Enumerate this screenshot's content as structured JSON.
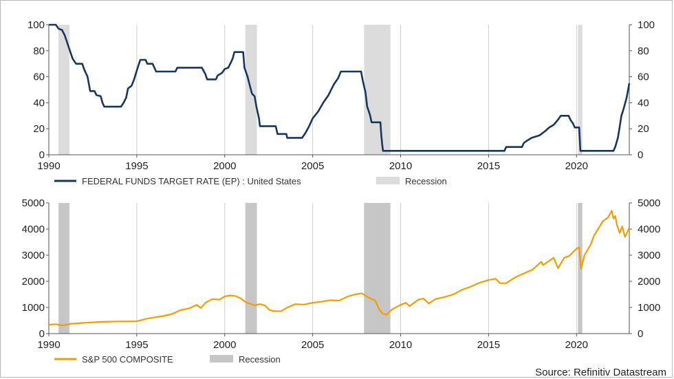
{
  "source": "Source: Refinitiv Datastream",
  "colors": {
    "fed": "#17365d",
    "spx": "#f59c00",
    "rec_top": "#dcdcdc",
    "rec_bottom": "#c6c6c6",
    "grid": "#cfcfcf",
    "axis": "#555555"
  },
  "recessions": [
    [
      1990.55,
      1991.17
    ],
    [
      2001.17,
      2001.83
    ],
    [
      2007.92,
      2009.42
    ],
    [
      2020.08,
      2020.33
    ]
  ],
  "chart_data": [
    {
      "type": "line",
      "title": "",
      "series": [
        {
          "name": "FEDERAL FUNDS TARGET RATE (EP) : United States",
          "legend_label": "FEDERAL FUNDS TARGET RATE (EP) : United States"
        }
      ],
      "recession_label": "Recession",
      "xlim": [
        1990,
        2023
      ],
      "ylim": [
        0,
        100
      ],
      "x_ticks": [
        "1990",
        "1995",
        "2000",
        "2005",
        "2010",
        "2015",
        "2020"
      ],
      "y_ticks": [
        "0",
        "20",
        "40",
        "60",
        "80",
        "100"
      ],
      "points": [
        [
          1990.0,
          100
        ],
        [
          1990.4,
          100
        ],
        [
          1990.55,
          97
        ],
        [
          1990.75,
          96
        ],
        [
          1990.9,
          92
        ],
        [
          1991.05,
          86
        ],
        [
          1991.2,
          80
        ],
        [
          1991.35,
          74
        ],
        [
          1991.55,
          70
        ],
        [
          1991.9,
          70
        ],
        [
          1992.0,
          66
        ],
        [
          1992.2,
          60
        ],
        [
          1992.35,
          49
        ],
        [
          1992.6,
          49
        ],
        [
          1992.7,
          46
        ],
        [
          1992.95,
          45
        ],
        [
          1993.05,
          40
        ],
        [
          1993.15,
          37
        ],
        [
          1994.1,
          37
        ],
        [
          1994.25,
          40
        ],
        [
          1994.4,
          44
        ],
        [
          1994.5,
          51
        ],
        [
          1994.7,
          53
        ],
        [
          1994.85,
          58
        ],
        [
          1995.05,
          67
        ],
        [
          1995.2,
          73
        ],
        [
          1995.5,
          73
        ],
        [
          1995.6,
          70
        ],
        [
          1995.9,
          70
        ],
        [
          1996.1,
          64
        ],
        [
          1997.2,
          64
        ],
        [
          1997.3,
          67
        ],
        [
          1998.7,
          67
        ],
        [
          1998.9,
          62
        ],
        [
          1999.0,
          58
        ],
        [
          1999.5,
          58
        ],
        [
          1999.6,
          61
        ],
        [
          1999.85,
          63
        ],
        [
          2000.0,
          66
        ],
        [
          2000.2,
          67
        ],
        [
          2000.35,
          71
        ],
        [
          2000.45,
          74
        ],
        [
          2000.55,
          79
        ],
        [
          2001.05,
          79
        ],
        [
          2001.12,
          67
        ],
        [
          2001.3,
          60
        ],
        [
          2001.45,
          52
        ],
        [
          2001.55,
          47
        ],
        [
          2001.7,
          45
        ],
        [
          2001.8,
          37
        ],
        [
          2001.95,
          28
        ],
        [
          2002.0,
          22
        ],
        [
          2002.9,
          22
        ],
        [
          2003.0,
          16
        ],
        [
          2003.5,
          16
        ],
        [
          2003.55,
          13
        ],
        [
          2004.4,
          13
        ],
        [
          2004.6,
          17
        ],
        [
          2004.8,
          22
        ],
        [
          2005.0,
          28
        ],
        [
          2005.3,
          33
        ],
        [
          2005.6,
          40
        ],
        [
          2005.9,
          46
        ],
        [
          2006.2,
          54
        ],
        [
          2006.45,
          59
        ],
        [
          2006.6,
          64
        ],
        [
          2007.75,
          64
        ],
        [
          2007.85,
          57
        ],
        [
          2008.0,
          48
        ],
        [
          2008.1,
          37
        ],
        [
          2008.25,
          31
        ],
        [
          2008.35,
          25
        ],
        [
          2008.85,
          25
        ],
        [
          2008.9,
          15
        ],
        [
          2008.95,
          8
        ],
        [
          2009.0,
          3
        ],
        [
          2015.9,
          3
        ],
        [
          2016.0,
          6
        ],
        [
          2016.9,
          6
        ],
        [
          2017.0,
          9
        ],
        [
          2017.2,
          11
        ],
        [
          2017.45,
          13
        ],
        [
          2017.9,
          15
        ],
        [
          2018.2,
          18
        ],
        [
          2018.45,
          21
        ],
        [
          2018.7,
          23
        ],
        [
          2018.95,
          27
        ],
        [
          2019.1,
          30
        ],
        [
          2019.55,
          30
        ],
        [
          2019.65,
          27
        ],
        [
          2019.8,
          24
        ],
        [
          2019.9,
          21
        ],
        [
          2020.15,
          21
        ],
        [
          2020.22,
          3
        ],
        [
          2022.1,
          3
        ],
        [
          2022.2,
          6
        ],
        [
          2022.35,
          13
        ],
        [
          2022.45,
          21
        ],
        [
          2022.55,
          30
        ],
        [
          2022.65,
          34
        ],
        [
          2022.75,
          39
        ],
        [
          2022.85,
          44
        ],
        [
          2023.0,
          55
        ]
      ]
    },
    {
      "type": "line",
      "title": "",
      "series": [
        {
          "name": "S&P 500 COMPOSITE",
          "legend_label": "S&P 500 COMPOSITE"
        }
      ],
      "recession_label": "Recession",
      "xlim": [
        1990,
        2023
      ],
      "ylim": [
        0,
        5000
      ],
      "x_ticks": [
        "1990",
        "1995",
        "2000",
        "2005",
        "2010",
        "2015",
        "2020"
      ],
      "y_ticks": [
        "0",
        "1000",
        "2000",
        "3000",
        "4000",
        "5000"
      ],
      "points": [
        [
          1990.0,
          340
        ],
        [
          1990.4,
          360
        ],
        [
          1990.8,
          310
        ],
        [
          1991.2,
          370
        ],
        [
          1992.0,
          410
        ],
        [
          1993.0,
          450
        ],
        [
          1994.0,
          465
        ],
        [
          1995.0,
          470
        ],
        [
          1995.5,
          560
        ],
        [
          1996.0,
          620
        ],
        [
          1996.5,
          670
        ],
        [
          1997.0,
          750
        ],
        [
          1997.5,
          900
        ],
        [
          1998.0,
          970
        ],
        [
          1998.4,
          1100
        ],
        [
          1998.65,
          980
        ],
        [
          1998.9,
          1180
        ],
        [
          1999.3,
          1320
        ],
        [
          1999.7,
          1300
        ],
        [
          2000.0,
          1420
        ],
        [
          2000.3,
          1460
        ],
        [
          2000.6,
          1440
        ],
        [
          2000.9,
          1350
        ],
        [
          2001.2,
          1200
        ],
        [
          2001.7,
          1080
        ],
        [
          2002.0,
          1130
        ],
        [
          2002.3,
          1070
        ],
        [
          2002.55,
          900
        ],
        [
          2002.8,
          860
        ],
        [
          2003.2,
          860
        ],
        [
          2003.5,
          980
        ],
        [
          2004.0,
          1130
        ],
        [
          2004.5,
          1110
        ],
        [
          2005.0,
          1180
        ],
        [
          2005.5,
          1220
        ],
        [
          2006.0,
          1280
        ],
        [
          2006.5,
          1260
        ],
        [
          2007.0,
          1420
        ],
        [
          2007.4,
          1500
        ],
        [
          2007.8,
          1540
        ],
        [
          2008.2,
          1370
        ],
        [
          2008.55,
          1270
        ],
        [
          2008.8,
          900
        ],
        [
          2009.0,
          760
        ],
        [
          2009.2,
          720
        ],
        [
          2009.5,
          920
        ],
        [
          2010.0,
          1100
        ],
        [
          2010.3,
          1180
        ],
        [
          2010.5,
          1050
        ],
        [
          2011.0,
          1300
        ],
        [
          2011.3,
          1340
        ],
        [
          2011.6,
          1150
        ],
        [
          2012.0,
          1330
        ],
        [
          2012.5,
          1400
        ],
        [
          2013.0,
          1500
        ],
        [
          2013.5,
          1680
        ],
        [
          2014.0,
          1800
        ],
        [
          2014.5,
          1950
        ],
        [
          2015.0,
          2050
        ],
        [
          2015.4,
          2100
        ],
        [
          2015.65,
          1930
        ],
        [
          2016.0,
          1930
        ],
        [
          2016.5,
          2150
        ],
        [
          2017.0,
          2300
        ],
        [
          2017.5,
          2450
        ],
        [
          2018.0,
          2750
        ],
        [
          2018.1,
          2620
        ],
        [
          2018.7,
          2900
        ],
        [
          2018.95,
          2500
        ],
        [
          2019.3,
          2900
        ],
        [
          2019.6,
          2980
        ],
        [
          2020.0,
          3250
        ],
        [
          2020.15,
          3300
        ],
        [
          2020.25,
          2480
        ],
        [
          2020.45,
          3000
        ],
        [
          2020.8,
          3400
        ],
        [
          2021.0,
          3750
        ],
        [
          2021.5,
          4300
        ],
        [
          2021.8,
          4450
        ],
        [
          2022.0,
          4700
        ],
        [
          2022.1,
          4400
        ],
        [
          2022.2,
          4500
        ],
        [
          2022.3,
          4150
        ],
        [
          2022.45,
          3850
        ],
        [
          2022.6,
          4100
        ],
        [
          2022.75,
          3700
        ],
        [
          2022.9,
          3900
        ],
        [
          2023.0,
          4050
        ]
      ]
    }
  ]
}
